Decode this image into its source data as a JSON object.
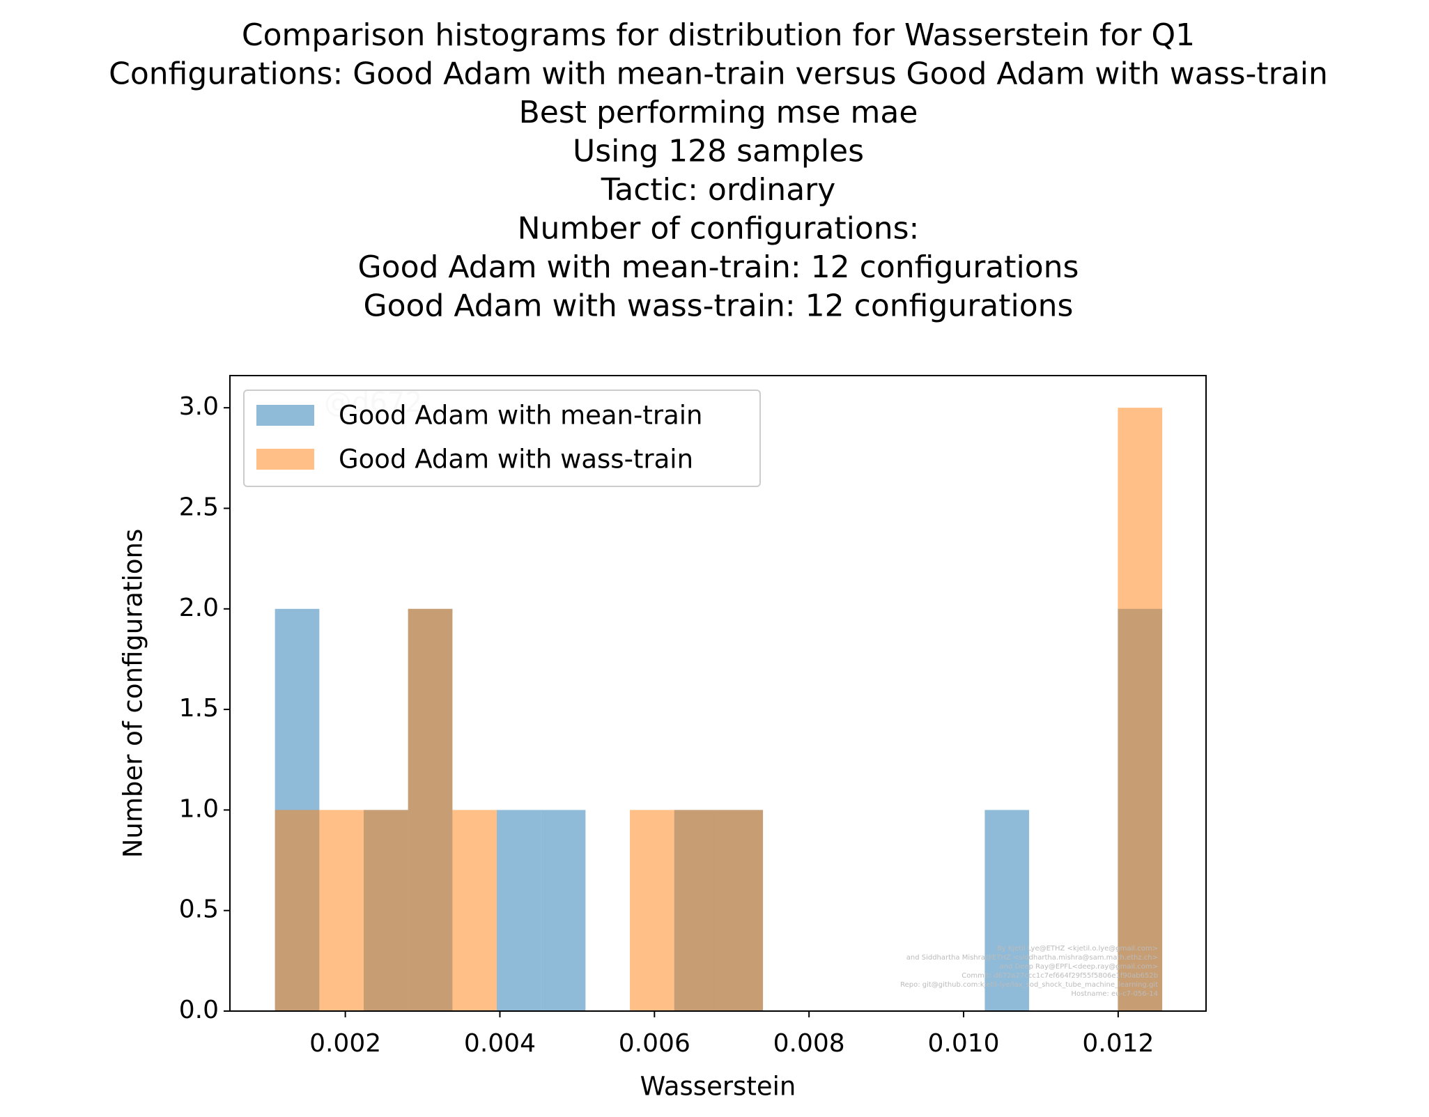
{
  "chart_data": {
    "type": "histogram",
    "title": [
      "Comparison histograms for distribution for Wasserstein for Q1",
      "Configurations: Good Adam with mean-train versus Good Adam with wass-train",
      "Best performing mse mae",
      "Using 128 samples",
      "Tactic: ordinary",
      "Number of configurations:",
      "Good Adam with mean-train: 12 configurations",
      "Good Adam with wass-train: 12 configurations"
    ],
    "xlabel": "Wasserstein",
    "ylabel": "Number of configurations",
    "bins": [
      0.00109,
      0.001664,
      0.002238,
      0.002812,
      0.003386,
      0.00396,
      0.004534,
      0.005108,
      0.005682,
      0.006256,
      0.00683,
      0.007404,
      0.007978,
      0.008552,
      0.009126,
      0.0097,
      0.010274,
      0.010848,
      0.011422,
      0.011996,
      0.01257
    ],
    "series": [
      {
        "name": "Good Adam with mean-train",
        "color": "#1f77b4",
        "values": [
          2,
          0,
          1,
          2,
          0,
          1,
          1,
          0,
          0,
          1,
          1,
          0,
          0,
          0,
          0,
          0,
          1,
          0,
          0,
          2
        ]
      },
      {
        "name": "Good Adam with wass-train",
        "color": "#ff7f0e",
        "values": [
          1,
          1,
          1,
          2,
          1,
          0,
          0,
          0,
          1,
          1,
          1,
          0,
          0,
          0,
          0,
          0,
          0,
          0,
          0,
          3
        ]
      }
    ],
    "opacity": 0.5,
    "xlim": [
      0.000507,
      0.013137
    ],
    "xticks": [
      0.002,
      0.004,
      0.006,
      0.008,
      0.01,
      0.012
    ],
    "xtick_labels": [
      "0.002",
      "0.004",
      "0.006",
      "0.008",
      "0.010",
      "0.012"
    ],
    "ylim": [
      0,
      3.16
    ],
    "yticks": [
      {
        "value": 0,
        "label": "0.0"
      },
      0.5,
      {
        "value": 1,
        "label": "1.0"
      },
      1.5,
      {
        "value": 2,
        "label": "2.0"
      },
      2.5,
      {
        "value": 3,
        "label": "3.0"
      }
    ],
    "legend": "upper left",
    "watermark": "@d672",
    "credits": [
      "By Kjetil Lye@ETHZ <kjetil.o.lye@gmail.com>",
      "and Siddhartha Mishra@ETHZ <siddhartha.mishra@sam.math.ethz.ch>",
      "and Deep Ray@EPFL<deep.ray@gmail.com>",
      "Commit: d672a27ccc1c7ef664f29f55f5806e1f90ab652b",
      "Repo: git@github.com:kjetil-lye/lax_sod_shock_tube_machine_learning.git",
      "Hostname: eu-c7-056-14"
    ]
  }
}
